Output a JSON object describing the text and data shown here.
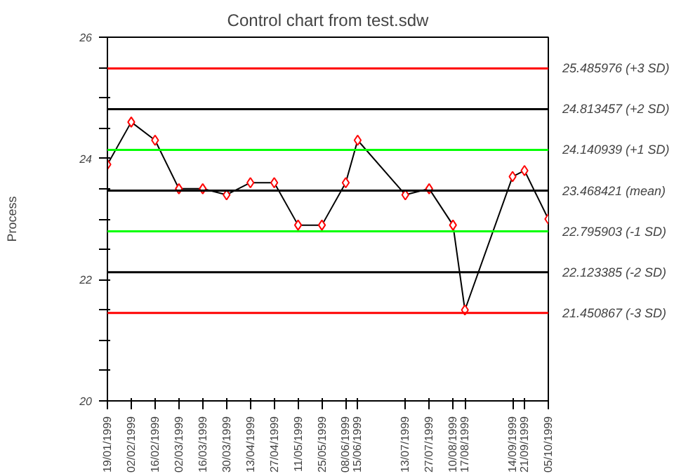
{
  "chart_data": {
    "type": "line",
    "title": "Control chart from test.sdw",
    "ylabel": "Process",
    "x": [
      "1999-01-19",
      "1999-02-02",
      "1999-02-16",
      "1999-03-02",
      "1999-03-16",
      "1999-03-30",
      "1999-04-13",
      "1999-04-27",
      "1999-05-11",
      "1999-05-25",
      "1999-06-08",
      "1999-06-15",
      "1999-07-13",
      "1999-07-27",
      "1999-08-10",
      "1999-08-17",
      "1999-09-14",
      "1999-09-21",
      "1999-10-05"
    ],
    "series": [
      {
        "color": "#000000",
        "values": [
          23.9,
          24.6,
          24.3,
          23.5,
          23.5,
          23.4,
          23.6,
          23.6,
          22.9,
          22.9,
          23.6,
          24.3,
          23.4,
          23.5,
          22.9,
          21.5,
          23.7,
          23.8,
          23.0
        ],
        "colors": [
          "#ff0000",
          "#ff0000",
          "#ff0000",
          "#ff0000",
          "#ff0000",
          "#ff0000",
          "#ff0000",
          "#ff0000",
          "#ff0000",
          "#ff0000",
          "#ff0000",
          "#ff0000",
          "#ff0000",
          "#ff0000",
          "#ff0000",
          "#ff0000",
          "#ff0000",
          "#ff0000",
          "#ff0000"
        ]
      }
    ],
    "marker": "diamond",
    "line_style": "solid",
    "grid": false,
    "xlim": [
      "1999-01-19",
      "1999-10-05"
    ],
    "xticks": [
      {
        "value": "1999-01-19",
        "label": "19/01/1999"
      },
      {
        "value": "1999-02-02",
        "label": "02/02/1999"
      },
      {
        "value": "1999-02-16",
        "label": "16/02/1999"
      },
      {
        "value": "1999-03-02",
        "label": "02/03/1999"
      },
      {
        "value": "1999-03-16",
        "label": "16/03/1999"
      },
      {
        "value": "1999-03-30",
        "label": "30/03/1999"
      },
      {
        "value": "1999-04-13",
        "label": "13/04/1999"
      },
      {
        "value": "1999-04-27",
        "label": "27/04/1999"
      },
      {
        "value": "1999-05-11",
        "label": "11/05/1999"
      },
      {
        "value": "1999-05-25",
        "label": "25/05/1999"
      },
      {
        "value": "1999-06-08",
        "label": "08/06/1999"
      },
      {
        "value": "1999-06-15",
        "label": "15/06/1999"
      },
      {
        "value": "1999-07-13",
        "label": "13/07/1999"
      },
      {
        "value": "1999-07-27",
        "label": "27/07/1999"
      },
      {
        "value": "1999-08-10",
        "label": "10/08/1999"
      },
      {
        "value": "1999-08-17",
        "label": "17/08/1999"
      },
      {
        "value": "1999-09-14",
        "label": "14/09/1999"
      },
      {
        "value": "1999-09-21",
        "label": "21/09/1999"
      },
      {
        "value": "1999-10-05",
        "label": "05/10/1999"
      }
    ],
    "ylim": [
      20,
      26
    ],
    "yticks": [
      20,
      {
        "value": 20.5,
        "label": null
      },
      {
        "value": 21,
        "label": null
      },
      {
        "value": 21.5,
        "label": null
      },
      22,
      {
        "value": 22.5,
        "label": null
      },
      {
        "value": 23,
        "label": null
      },
      {
        "value": 23.5,
        "label": null
      },
      24,
      {
        "value": 24.5,
        "label": null
      },
      {
        "value": 25,
        "label": null
      },
      {
        "value": 25.5,
        "label": null
      },
      26
    ],
    "ref_lines": [
      {
        "axis": "y",
        "value": 25.485976,
        "label": "25.485976 (+3 SD)",
        "color": "#ff0000"
      },
      {
        "axis": "y",
        "value": 24.813457,
        "label": "24.813457 (+2 SD)",
        "color": "#000000"
      },
      {
        "axis": "y",
        "value": 24.140939,
        "label": "24.140939 (+1 SD)",
        "color": "#00ff00"
      },
      {
        "axis": "y",
        "value": 23.468421,
        "label": "23.468421 (mean)",
        "color": "#000000"
      },
      {
        "axis": "y",
        "value": 22.795903,
        "label": "22.795903 (-1 SD)",
        "color": "#00ff00"
      },
      {
        "axis": "y",
        "value": 22.123385,
        "label": "22.123385 (-2 SD)",
        "color": "#000000"
      },
      {
        "axis": "y",
        "value": 21.450867,
        "label": "21.450867 (-3 SD)",
        "color": "#ff0000"
      }
    ]
  }
}
